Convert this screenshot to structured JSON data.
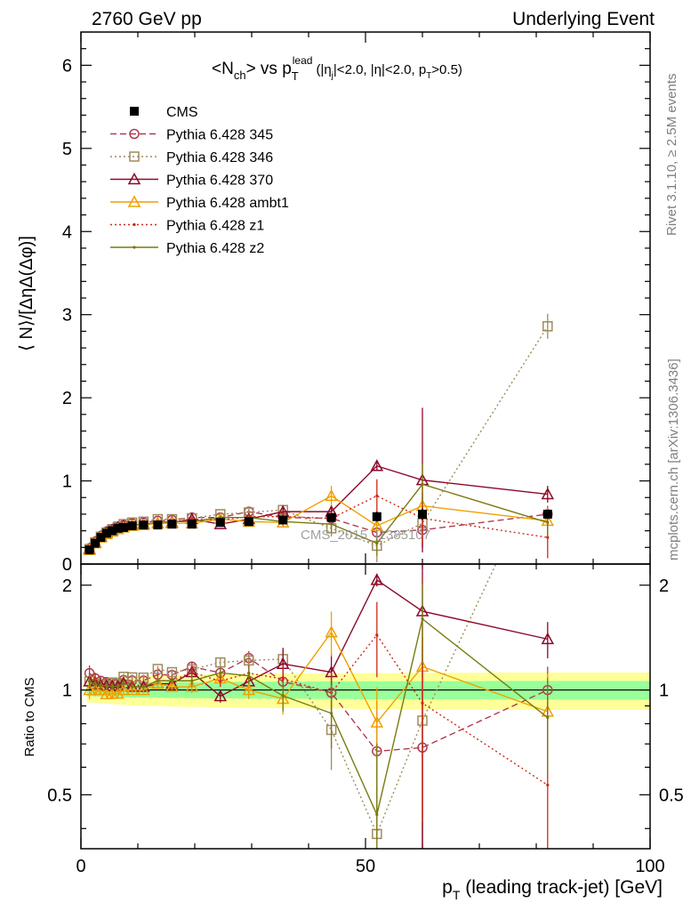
{
  "header": {
    "left": "2760 GeV pp",
    "right": "Underlying Event"
  },
  "title": {
    "main": "<N",
    "main_sub": "ch",
    "vs": "> vs p",
    "vs_sub": "T",
    "vs_sup": "lead",
    "cuts": "(|η",
    "cuts_sub": "j",
    "cuts_mid": "|<2.0, |η|<2.0, p",
    "cuts_sub2": "T",
    "cuts_end": ">0.5)"
  },
  "side_labels": {
    "rivet": "Rivet 3.1.10, ≥ 2.5M events",
    "mcplots": "mcplots.cern.ch [arXiv:1306.3436]"
  },
  "watermark": "CMS_2015_I1385107",
  "axes": {
    "top_ylabel": "⟨ N⟩/[ΔηΔ(Δφ)]",
    "bottom_ylabel": "Ratio to CMS",
    "xlabel_p": "p",
    "xlabel_sub": "T",
    "xlabel_rest": " (leading track-jet) [GeV]"
  },
  "legend": [
    {
      "label": "CMS",
      "color": "#000000",
      "marker": "filled-square",
      "dash": "none"
    },
    {
      "label": "Pythia 6.428 345",
      "color": "#b03a50",
      "marker": "circle",
      "dash": "dashed"
    },
    {
      "label": "Pythia 6.428 346",
      "color": "#a08a5c",
      "marker": "square",
      "dash": "dotted"
    },
    {
      "label": "Pythia 6.428 370",
      "color": "#8b0a2a",
      "marker": "triangle",
      "dash": "solid"
    },
    {
      "label": "Pythia 6.428 ambt1",
      "color": "#f0a000",
      "marker": "triangle",
      "dash": "solid"
    },
    {
      "label": "Pythia 6.428 z1",
      "color": "#cc2a1a",
      "marker": "dot",
      "dash": "dotted"
    },
    {
      "label": "Pythia 6.428 z2",
      "color": "#7a7a10",
      "marker": "dot",
      "dash": "solid"
    }
  ],
  "chart_data": {
    "type": "line",
    "xlim": [
      0,
      100
    ],
    "ylim_top": [
      0,
      6.4
    ],
    "ylim_ratio": [
      0.35,
      2.3
    ],
    "ratio_scale": "log",
    "x_ticks": [
      0,
      50,
      100
    ],
    "y_ticks_top": [
      0,
      1,
      2,
      3,
      4,
      5,
      6
    ],
    "y_ticks_ratio": [
      0.5,
      1,
      2
    ],
    "grid": false,
    "legend_position": "top-left",
    "x": [
      1.5,
      2.5,
      3.5,
      4.5,
      5.5,
      6.5,
      7.5,
      9,
      11,
      13.5,
      16,
      19.5,
      24.5,
      29.5,
      35.5,
      44,
      52,
      60,
      82
    ],
    "cms": {
      "values": [
        0.17,
        0.25,
        0.32,
        0.37,
        0.4,
        0.43,
        0.44,
        0.46,
        0.47,
        0.47,
        0.48,
        0.48,
        0.5,
        0.51,
        0.53,
        0.56,
        0.57,
        0.6,
        0.6
      ],
      "err": [
        0.01,
        0.01,
        0.01,
        0.01,
        0.01,
        0.01,
        0.01,
        0.01,
        0.01,
        0.01,
        0.01,
        0.01,
        0.02,
        0.02,
        0.03,
        0.05,
        0.06,
        0.07,
        0.05
      ]
    },
    "band_green_rel": 0.04,
    "band_yellow_rel": 0.08,
    "series": [
      {
        "name": "Pythia 6.428 345",
        "values": [
          0.19,
          0.27,
          0.34,
          0.39,
          0.42,
          0.45,
          0.47,
          0.49,
          0.5,
          0.52,
          0.53,
          0.56,
          0.56,
          0.63,
          0.56,
          0.55,
          0.38,
          0.41,
          0.6
        ],
        "err": [
          0.01,
          0.01,
          0.01,
          0.01,
          0.01,
          0.01,
          0.01,
          0.01,
          0.01,
          0.01,
          0.01,
          0.02,
          0.02,
          0.03,
          0.05,
          0.08,
          0.15,
          0.2,
          0.1
        ]
      },
      {
        "name": "Pythia 6.428 346",
        "values": [
          0.18,
          0.26,
          0.33,
          0.38,
          0.42,
          0.45,
          0.48,
          0.5,
          0.51,
          0.54,
          0.54,
          0.55,
          0.6,
          0.62,
          0.65,
          0.43,
          0.22,
          0.49,
          2.86
        ],
        "err": [
          0.01,
          0.01,
          0.01,
          0.01,
          0.01,
          0.01,
          0.01,
          0.01,
          0.01,
          0.01,
          0.01,
          0.02,
          0.02,
          0.03,
          0.05,
          0.1,
          0.2,
          0.3,
          0.15
        ]
      },
      {
        "name": "Pythia 6.428 370",
        "values": [
          0.18,
          0.26,
          0.33,
          0.38,
          0.41,
          0.44,
          0.46,
          0.47,
          0.48,
          0.49,
          0.5,
          0.54,
          0.48,
          0.54,
          0.63,
          0.63,
          1.18,
          1.01,
          0.84
        ],
        "err": [
          0.01,
          0.01,
          0.01,
          0.01,
          0.01,
          0.01,
          0.01,
          0.01,
          0.01,
          0.01,
          0.01,
          0.02,
          0.02,
          0.04,
          0.07,
          0.08,
          0.05,
          0.87,
          0.1
        ]
      },
      {
        "name": "Pythia 6.428 ambt1",
        "values": [
          0.17,
          0.25,
          0.32,
          0.36,
          0.39,
          0.42,
          0.44,
          0.46,
          0.47,
          0.49,
          0.49,
          0.49,
          0.54,
          0.51,
          0.5,
          0.82,
          0.46,
          0.7,
          0.52
        ],
        "err": [
          0.01,
          0.01,
          0.01,
          0.01,
          0.01,
          0.01,
          0.01,
          0.01,
          0.01,
          0.01,
          0.01,
          0.02,
          0.02,
          0.03,
          0.05,
          0.12,
          0.12,
          0.2,
          0.15
        ]
      },
      {
        "name": "Pythia 6.428 z1",
        "values": [
          0.18,
          0.27,
          0.33,
          0.38,
          0.41,
          0.44,
          0.46,
          0.48,
          0.48,
          0.5,
          0.51,
          0.54,
          0.53,
          0.57,
          0.57,
          0.55,
          0.82,
          0.55,
          0.32
        ],
        "err": [
          0.01,
          0.01,
          0.01,
          0.01,
          0.01,
          0.01,
          0.01,
          0.01,
          0.01,
          0.01,
          0.01,
          0.02,
          0.02,
          0.03,
          0.05,
          0.08,
          0.2,
          0.3,
          0.25
        ]
      },
      {
        "name": "Pythia 6.428 z2",
        "values": [
          0.18,
          0.26,
          0.33,
          0.38,
          0.41,
          0.44,
          0.46,
          0.47,
          0.48,
          0.5,
          0.51,
          0.51,
          0.56,
          0.56,
          0.51,
          0.48,
          0.25,
          0.96,
          0.5
        ],
        "err": [
          0.01,
          0.01,
          0.01,
          0.01,
          0.01,
          0.01,
          0.01,
          0.01,
          0.01,
          0.01,
          0.01,
          0.02,
          0.02,
          0.03,
          0.05,
          0.1,
          0.15,
          0.25,
          0.15
        ]
      }
    ]
  }
}
